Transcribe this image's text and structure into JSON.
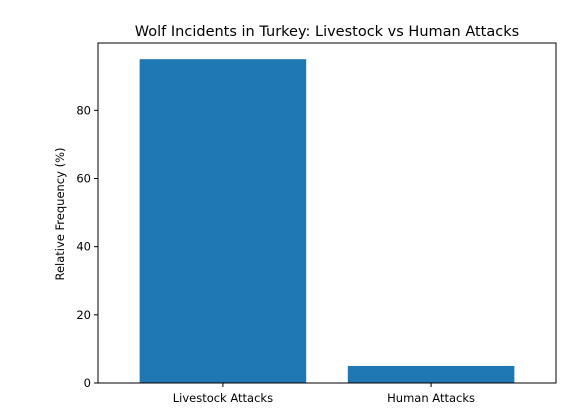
{
  "chart_data": {
    "type": "bar",
    "title": "Wolf Incidents in Turkey: Livestock vs Human Attacks",
    "xlabel": "",
    "ylabel": "Relative Frequency (%)",
    "categories": [
      "Livestock Attacks",
      "Human Attacks"
    ],
    "values": [
      95,
      5
    ],
    "ylim": [
      0,
      99.75
    ],
    "yticks": [
      0,
      20,
      40,
      60,
      80
    ],
    "bar_color": "#1f77b4",
    "grid": false,
    "legend": "none"
  }
}
